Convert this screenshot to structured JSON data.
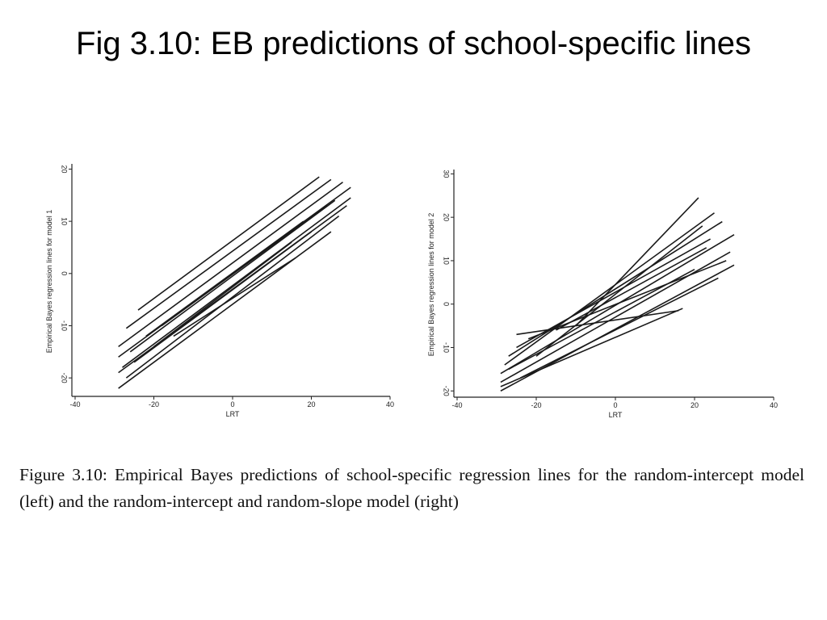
{
  "title": "Fig 3.10: EB predictions of school-specific lines",
  "chart_data": [
    {
      "type": "line",
      "color": "#1a1a1a",
      "x_label": "LRT",
      "y_label": "Empirical Bayes regression lines for model 1",
      "xlim": [
        -40,
        40
      ],
      "xticks": [
        -40,
        -20,
        0,
        20,
        40
      ],
      "ylim": [
        -24,
        21
      ],
      "yticks": [
        -20,
        -10,
        0,
        10,
        20
      ],
      "series": [
        {
          "x": [
            -24,
            22
          ],
          "values": [
            -7,
            18.5
          ]
        },
        {
          "x": [
            -27,
            25
          ],
          "values": [
            -10.5,
            18
          ]
        },
        {
          "x": [
            -29,
            28
          ],
          "values": [
            -14,
            17.5
          ]
        },
        {
          "x": [
            -29,
            30
          ],
          "values": [
            -16,
            16.5
          ]
        },
        {
          "x": [
            -28,
            30
          ],
          "values": [
            -18,
            14.5
          ]
        },
        {
          "x": [
            -29,
            29
          ],
          "values": [
            -19,
            13
          ]
        },
        {
          "x": [
            -27,
            27
          ],
          "values": [
            -20,
            11
          ]
        },
        {
          "x": [
            -29,
            25
          ],
          "values": [
            -22,
            8
          ]
        },
        {
          "x": [
            -25,
            20
          ],
          "values": [
            -17,
            8
          ]
        },
        {
          "x": [
            -22,
            18
          ],
          "values": [
            -12,
            10
          ]
        },
        {
          "x": [
            -20,
            15
          ],
          "values": [
            -14,
            6
          ]
        },
        {
          "x": [
            -26,
            26
          ],
          "values": [
            -15,
            14
          ]
        },
        {
          "x": [
            -18,
            24
          ],
          "values": [
            -10,
            13
          ]
        },
        {
          "x": [
            -15,
            16
          ],
          "values": [
            -12,
            3
          ]
        }
      ]
    },
    {
      "type": "line",
      "color": "#1a1a1a",
      "x_label": "LRT",
      "y_label": "Empirical Bayes regression lines for model 2",
      "xlim": [
        -40,
        40
      ],
      "xticks": [
        -40,
        -20,
        0,
        20,
        40
      ],
      "ylim": [
        -22,
        31
      ],
      "yticks": [
        -20,
        -10,
        0,
        10,
        20,
        30
      ],
      "series": [
        {
          "x": [
            -25,
            16
          ],
          "values": [
            -7,
            -1.5
          ]
        },
        {
          "x": [
            -10,
            21
          ],
          "values": [
            -5,
            24.5
          ]
        },
        {
          "x": [
            -29,
            29
          ],
          "values": [
            -18,
            12
          ]
        },
        {
          "x": [
            -29,
            30
          ],
          "values": [
            -16,
            16
          ]
        },
        {
          "x": [
            -28,
            25
          ],
          "values": [
            -14,
            21
          ]
        },
        {
          "x": [
            -27,
            27
          ],
          "values": [
            -12,
            19
          ]
        },
        {
          "x": [
            -25,
            24
          ],
          "values": [
            -10,
            15
          ]
        },
        {
          "x": [
            -29,
            17
          ],
          "values": [
            -19,
            -1
          ]
        },
        {
          "x": [
            -22,
            28
          ],
          "values": [
            -8,
            10
          ]
        },
        {
          "x": [
            -27,
            20
          ],
          "values": [
            -15,
            8
          ]
        },
        {
          "x": [
            -20,
            22
          ],
          "values": [
            -12,
            18
          ]
        },
        {
          "x": [
            -24,
            26
          ],
          "values": [
            -17,
            6
          ]
        },
        {
          "x": [
            -15,
            23
          ],
          "values": [
            -6,
            13
          ]
        },
        {
          "x": [
            -29,
            30
          ],
          "values": [
            -20,
            9
          ]
        }
      ]
    }
  ],
  "caption": "Figure 3.10: Empirical Bayes predictions of school-specific regression lines for the random-intercept model (left) and the random-intercept and random-slope model (right)"
}
